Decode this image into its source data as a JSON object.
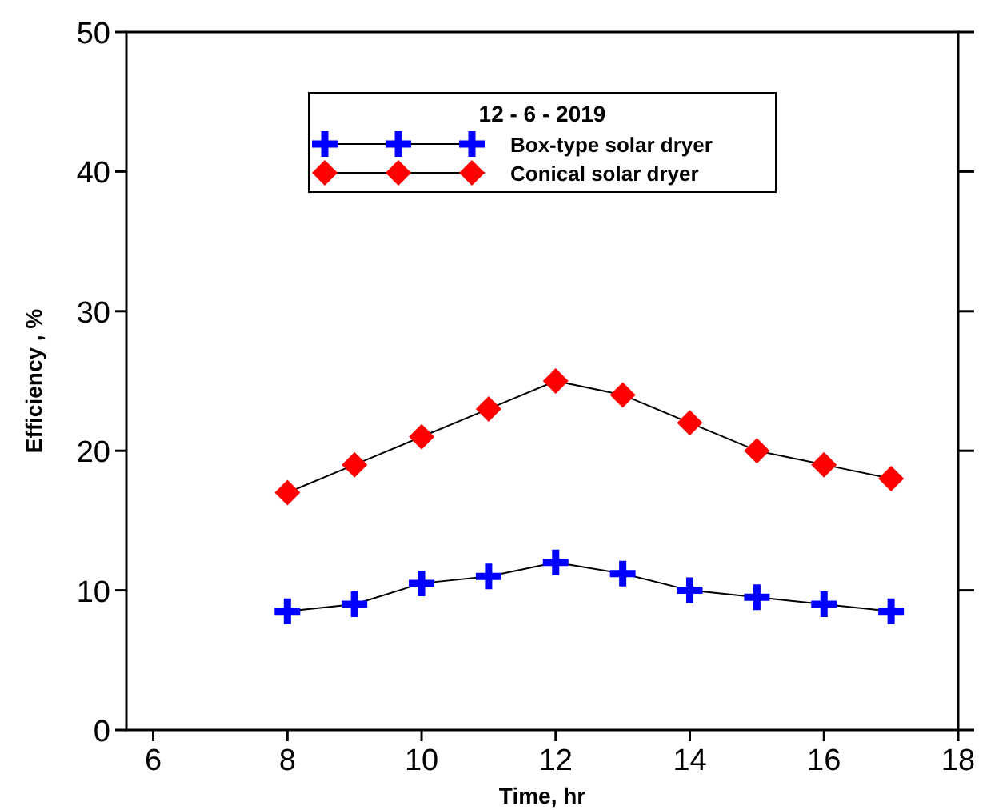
{
  "chart_data": {
    "type": "line",
    "xlabel": "Time, hr",
    "ylabel": "Efficiency , %",
    "legend_title": "12 - 6 - 2019",
    "legend": "top",
    "x": [
      8,
      9,
      10,
      11,
      12,
      13,
      14,
      15,
      16,
      17
    ],
    "series": [
      {
        "name": "Box-type solar dryer",
        "color": "#0000ff",
        "marker": "cross",
        "values": [
          8.5,
          9,
          10.5,
          11,
          12,
          11.2,
          10,
          9.5,
          9,
          8.5
        ]
      },
      {
        "name": "Conical solar dryer",
        "color": "#ff0000",
        "marker": "diamond",
        "values": [
          17,
          19,
          21,
          23,
          25,
          24,
          22,
          20,
          19,
          18
        ]
      }
    ],
    "xlim": [
      5.6,
      18
    ],
    "xticks": [
      6,
      8,
      10,
      12,
      14,
      16,
      18
    ],
    "ylim": [
      0,
      50
    ],
    "yticks": [
      0,
      10,
      20,
      30,
      40,
      50
    ],
    "grid": false
  }
}
